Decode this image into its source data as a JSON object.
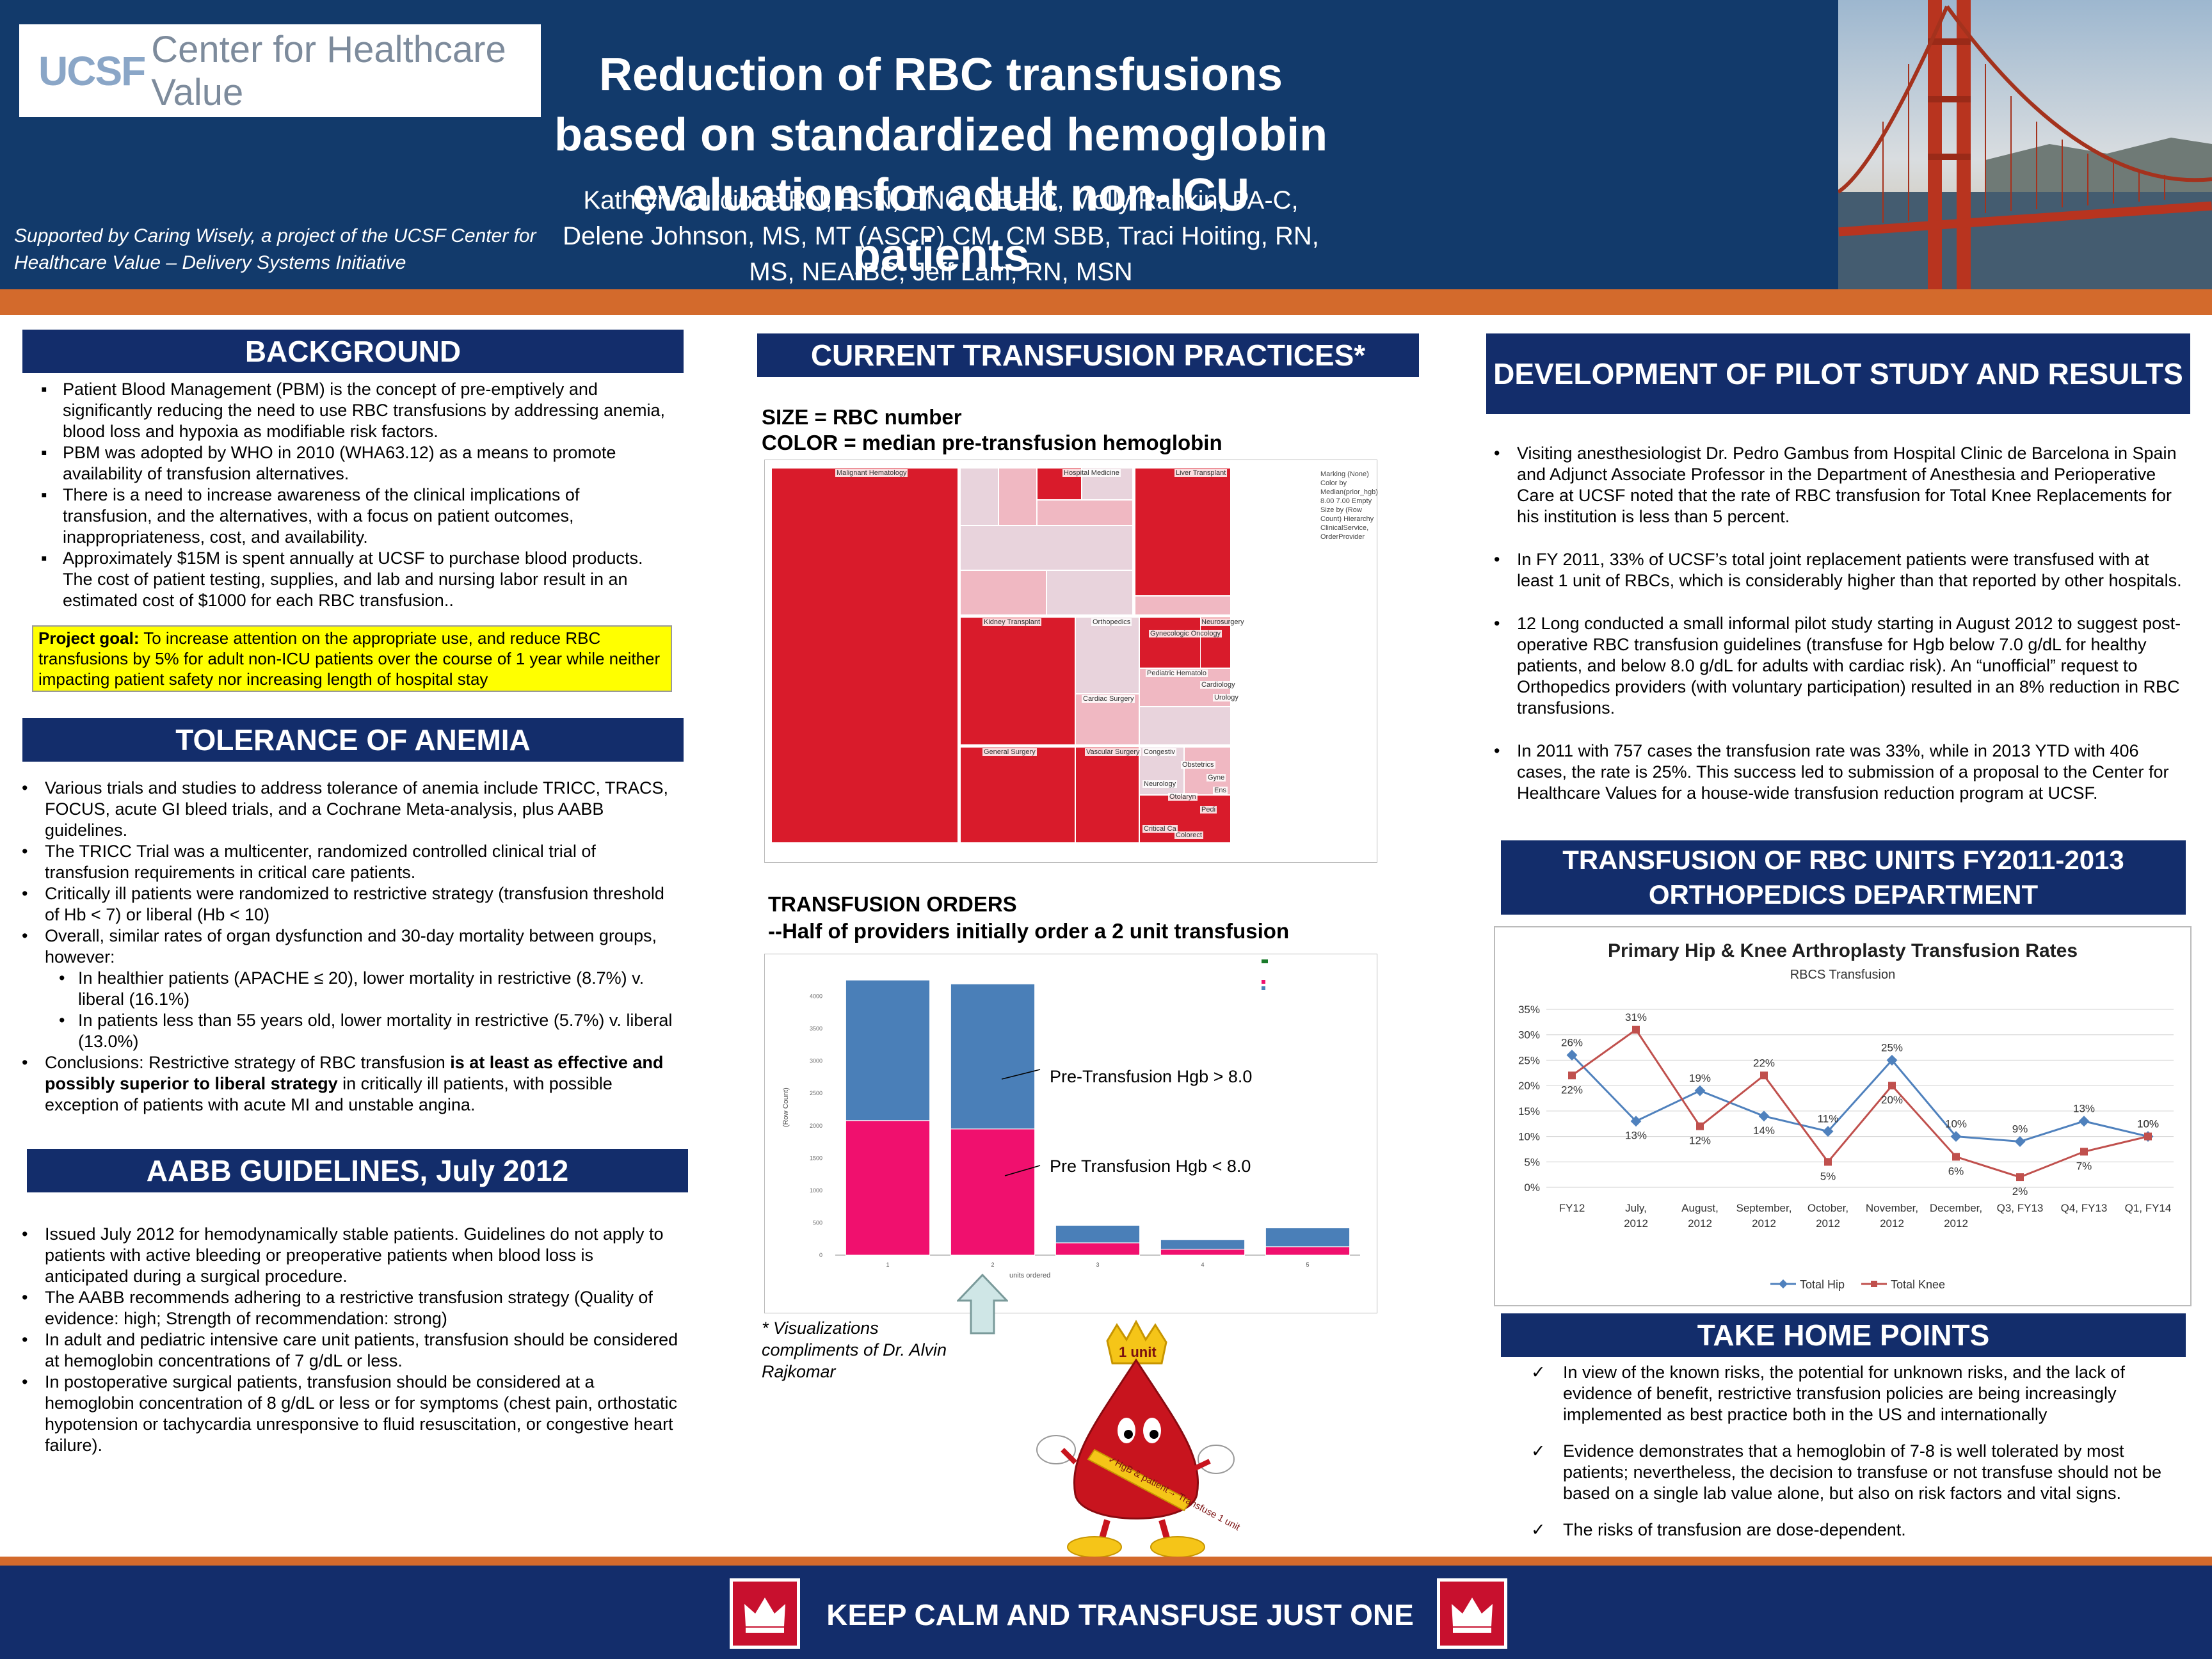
{
  "header": {
    "logo_ucsf": "UCSF",
    "logo_text": "Center for Healthcare Value",
    "title": "Reduction of RBC transfusions based on standardized hemoglobin evaluation for adult non-ICU patients",
    "authors": "Kathryn Curcione RN, BSN, ONC, NE-BC, Molly Rankin, PA-C, Delene Johnson, MS, MT (ASCP) CM, CM SBB,  Traci Hoiting, RN, MS, NEA-BC,  Jeff Lam, RN, MSN",
    "support": "Supported by Caring Wisely, a project of the UCSF Center for Healthcare Value – Delivery Systems Initiative"
  },
  "background": {
    "heading": "BACKGROUND",
    "items": [
      "Patient Blood Management (PBM) is the concept of pre-emptively and significantly reducing the need to use RBC transfusions by addressing anemia, blood loss and hypoxia as modifiable risk factors.",
      "PBM was adopted by WHO in 2010 (WHA63.12) as a means to promote availability of transfusion alternatives.",
      "There is a need to increase awareness of the clinical implications of transfusion, and the alternatives, with a focus on patient outcomes, inappropriateness, cost, and availability.",
      "Approximately $15M is spent annually at UCSF to purchase blood products. The cost of patient testing, supplies, and lab and nursing labor result in an estimated cost of $1000 for each RBC transfusion.."
    ],
    "goal_label": "Project goal:",
    "goal_text": "  To increase attention on the appropriate use, and reduce RBC transfusions by 5% for adult non-ICU patients over the course of 1 year while neither impacting patient safety nor increasing length of hospital stay"
  },
  "tolerance": {
    "heading": "TOLERANCE OF ANEMIA",
    "items": [
      "Various trials and studies to address tolerance of anemia include TRICC, TRACS, FOCUS, acute GI bleed trials, and a Cochrane Meta-analysis, plus AABB guidelines.",
      "The TRICC Trial was a multicenter, randomized controlled clinical trial of transfusion requirements in critical care patients.",
      "Critically ill patients were randomized to restrictive strategy (transfusion threshold of Hb < 7) or liberal (Hb < 10)",
      "Overall, similar rates of organ dysfunction and 30-day mortality between groups, however:",
      "In healthier patients (APACHE ≤ 20), lower mortality in restrictive (8.7%) v. liberal (16.1%)",
      "In patients less than 55 years old, lower mortality in restrictive (5.7%) v. liberal (13.0%)"
    ],
    "conclusion_pre": "Conclusions: Restrictive strategy of RBC transfusion ",
    "conclusion_bold": "is at least as effective and possibly superior to liberal strategy",
    "conclusion_post": " in critically ill patients, with possible exception of patients with acute MI and unstable angina."
  },
  "aabb": {
    "heading": "AABB GUIDELINES, July 2012",
    "items": [
      "Issued July 2012 for hemodynamically stable patients.  Guidelines do not apply to patients with active bleeding or preoperative patients when blood loss is anticipated during a surgical procedure.",
      "The AABB recommends adhering to a restrictive transfusion strategy (Quality of evidence: high; Strength of recommendation: strong)",
      "In adult and pediatric intensive care unit patients, transfusion should be considered at hemoglobin concentrations of 7 g/dL or less.",
      "In postoperative surgical patients, transfusion should be considered at a hemoglobin concentration of 8 g/dL or less or for symptoms (chest pain, orthostatic hypotension or tachycardia unresponsive to fluid resuscitation, or congestive heart failure)."
    ]
  },
  "current": {
    "heading": "CURRENT TRANSFUSION PRACTICES*",
    "size_line": "SIZE = RBC number",
    "color_line": "COLOR = median pre-transfusion hemoglobin",
    "treemap_labels": [
      "Malignant Hematology",
      "Hospital Medicine",
      "Liver Transplant",
      "Kidney Transplant",
      "Orthopedics",
      "Gynecologic Oncology",
      "Neurosurgery",
      "Pediatric Hematolo",
      "Cardiology",
      "Urology",
      "Cardiac Surgery",
      "General Surgery",
      "Congestiv",
      "Obstetrics",
      "Gyne",
      "Pedi",
      "Ens",
      "Neurology",
      "Otolaryn",
      "Vascular Surgery",
      "Critical Ca",
      "Colorect"
    ],
    "treemap_legend": "Marking (None)  Color by Median(prior_hgb)  8.00  7.00  Empty  Size by (Row Count)  Hierarchy ClinicalService, OrderProvider",
    "orders_title": "TRANSFUSION ORDERS",
    "orders_sub": "--Half of providers initially order a 2 unit transfusion",
    "pre_gt": "Pre-Transfusion Hgb > 8.0",
    "pre_lt": "Pre Transfusion Hgb < 8.0",
    "y_label": "(Row Count)",
    "x_label": "units ordered",
    "credit": "* Visualizations compliments of Dr. Alvin Rajkomar",
    "mascot_crown": "1 unit",
    "mascot_sash": "✓HgB & patient→ Transfuse 1 unit"
  },
  "development": {
    "heading": "DEVELOPMENT OF PILOT STUDY AND RESULTS",
    "items": [
      "Visiting anesthesiologist Dr. Pedro Gambus from Hospital Clinic de Barcelona in Spain and Adjunct Associate Professor in the Department of Anesthesia and Perioperative Care at UCSF noted that the rate of RBC transfusion for Total Knee Replacements for his institution is less than 5 percent.",
      "In FY 2011, 33% of UCSF’s total joint replacement patients were transfused with at least 1 unit of RBCs, which is considerably higher than that reported by other hospitals.",
      "12 Long conducted a small informal pilot study starting in August 2012 to suggest post-operative RBC transfusion guidelines (transfuse for Hgb below 7.0 g/dL for healthy patients, and below 8.0 g/dL for adults with cardiac risk).    An “unofficial” request to Orthopedics providers (with voluntary participation) resulted in an 8% reduction in RBC transfusions.",
      "In 2011 with 757 cases the transfusion rate was 33%, while in 2013 YTD with 406 cases, the rate is 25%.  This success led to submission of a proposal to the Center for Healthcare Values for a house-wide transfusion reduction program at UCSF."
    ]
  },
  "transfusion_units": {
    "heading": "TRANSFUSION OF RBC UNITS FY2011-2013 ORTHOPEDICS DEPARTMENT"
  },
  "take_home": {
    "heading": "TAKE HOME POINTS",
    "items": [
      "In view of the known risks, the potential for unknown risks, and the lack of evidence of benefit, restrictive transfusion policies are being increasingly implemented as best practice both in the US and internationally",
      "Evidence demonstrates that a hemoglobin of 7-8 is well tolerated by most patients; nevertheless, the decision to transfuse or not transfuse should not be based on a single lab value alone, but also on risk factors and vital signs.",
      "The risks of transfusion are dose-dependent."
    ]
  },
  "footer": {
    "text": "KEEP CALM AND TRANSFUSE JUST ONE"
  },
  "chart_data": [
    {
      "type": "bar",
      "stacked": true,
      "categories": [
        "1",
        "2",
        "3",
        "4",
        "5"
      ],
      "series": [
        {
          "name": "Pre Transfusion Hgb < 8.0",
          "color": "#f0106e",
          "values": [
            2080,
            1950,
            190,
            90,
            130
          ]
        },
        {
          "name": "Pre-Transfusion Hgb > 8.0",
          "color": "#4a7fb8",
          "values": [
            2170,
            2240,
            270,
            150,
            290
          ]
        }
      ],
      "yticks": [
        "0",
        "500",
        "1000",
        "1500",
        "2000",
        "2500",
        "3000",
        "3500",
        "4000"
      ],
      "ylim": [
        0,
        4500
      ],
      "xlabel": "units ordered",
      "ylabel": "(Row Count)"
    },
    {
      "type": "line",
      "title": "Primary Hip & Knee Arthroplasty Transfusion Rates",
      "subtitle": "RBCS Transfusion",
      "categories": [
        "FY12",
        "July, 2012",
        "August, 2012",
        "September, 2012",
        "October, 2012",
        "November, 2012",
        "December, 2012",
        "Q3, FY13",
        "Q4, FY13",
        "Q1, FY14"
      ],
      "series": [
        {
          "name": "Total Hip",
          "color": "#4f81bd",
          "values": [
            26,
            13,
            19,
            14,
            11,
            25,
            10,
            9,
            13,
            10
          ]
        },
        {
          "name": "Total Knee",
          "color": "#c0504d",
          "values": [
            22,
            31,
            12,
            22,
            5,
            20,
            6,
            2,
            7,
            10
          ]
        }
      ],
      "yticks": [
        "0%",
        "5%",
        "10%",
        "15%",
        "20%",
        "25%",
        "30%",
        "35%"
      ],
      "ylim": [
        0,
        35
      ],
      "legend": "bottom",
      "grid": true
    }
  ]
}
